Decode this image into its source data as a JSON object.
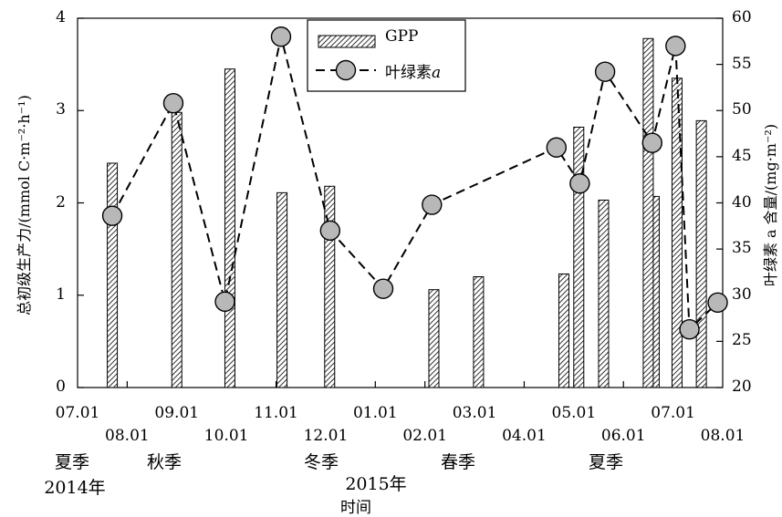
{
  "chart_data": {
    "type": "bar+line",
    "x_ticks_row1": [
      "07.01",
      "09.01",
      "11.01",
      "01.01",
      "03.01",
      "05.01",
      "07.01"
    ],
    "x_ticks_row2": [
      "08.01",
      "10.01",
      "12.01",
      "02.01",
      "04.01",
      "06.01",
      "08.01"
    ],
    "seasons": [
      "夏季",
      "秋季",
      "冬季",
      "春季",
      "夏季"
    ],
    "year_labels": [
      "2014年",
      "2015年"
    ],
    "xlabel": "时间",
    "ylabel_left": "总初级生产力/(mmol C·m⁻²·h⁻¹)",
    "ylabel_right": "叶绿素 a 含量/(mg·m⁻²)",
    "y_left_ticks": [
      "0",
      "1",
      "2",
      "3",
      "4"
    ],
    "y_right_ticks": [
      "20",
      "25",
      "30",
      "35",
      "40",
      "45",
      "50",
      "55",
      "60"
    ],
    "ylim_left": [
      0,
      4
    ],
    "ylim_right": [
      20,
      60
    ],
    "xlim_months": [
      0,
      13
    ],
    "legend": {
      "placement": "top-center",
      "gpp": "GPP",
      "chl_prefix": "叶绿素",
      "chl_italic": "a"
    },
    "gpp_series": {
      "name": "GPP",
      "month_index": [
        0.7,
        2.0,
        3.07,
        4.12,
        5.08,
        7.18,
        8.08,
        9.8,
        10.1,
        10.6,
        11.62,
        12.08,
        12.57
      ],
      "values": [
        2.43,
        2.98,
        3.45,
        2.11,
        2.18,
        1.06,
        1.2,
        1.23,
        2.82,
        2.03,
        2.07,
        3.35,
        2.89
      ],
      "extra_bar": {
        "month_index": 11.5,
        "value": 3.78
      }
    },
    "chlorophyll_series": {
      "name": "叶绿素a",
      "month_index": [
        0.7,
        1.93,
        2.97,
        4.1,
        5.09,
        6.16,
        7.14,
        9.65,
        10.12,
        10.63,
        11.58,
        12.05,
        12.33,
        12.9
      ],
      "values": [
        38.6,
        50.8,
        29.3,
        58.0,
        37.0,
        30.7,
        39.8,
        46.0,
        42.1,
        54.2,
        46.5,
        57.0,
        26.3,
        29.2
      ]
    }
  }
}
